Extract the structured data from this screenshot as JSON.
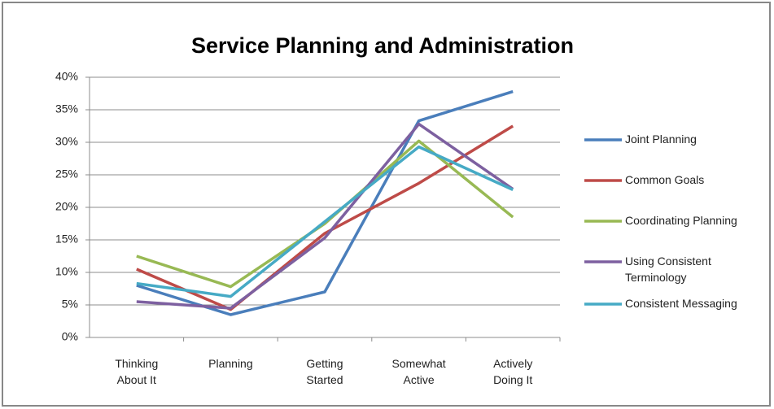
{
  "chart_data": {
    "type": "line",
    "title": "Service Planning and Administration",
    "categories": [
      "Thinking About It",
      "Planning",
      "Getting Started",
      "Somewhat Active",
      "Actively Doing It"
    ],
    "series": [
      {
        "name": "Joint Planning",
        "color": "#4a7ebb",
        "values": [
          8,
          3.5,
          7,
          33.3,
          37.8
        ]
      },
      {
        "name": "Common Goals",
        "color": "#be4b48",
        "values": [
          10.5,
          4.3,
          16,
          23.7,
          32.5
        ]
      },
      {
        "name": "Coordinating Planning",
        "color": "#98b954",
        "values": [
          12.5,
          7.8,
          17.5,
          30.2,
          18.5
        ]
      },
      {
        "name": "Using Consistent Terminology",
        "color": "#7d60a0",
        "values": [
          5.5,
          4.5,
          15.3,
          32.8,
          22.8
        ]
      },
      {
        "name": "Consistent Messaging",
        "color": "#46aac5",
        "values": [
          8.3,
          6.3,
          17.8,
          29.3,
          22.7
        ]
      }
    ],
    "ylim": [
      0,
      40
    ],
    "yticks": [
      {
        "value": 0,
        "label": "0%"
      },
      {
        "value": 5,
        "label": "5%"
      },
      {
        "value": 10,
        "label": "10%"
      },
      {
        "value": 15,
        "label": "15%"
      },
      {
        "value": 20,
        "label": "20%"
      },
      {
        "value": 25,
        "label": "25%"
      },
      {
        "value": 30,
        "label": "30%"
      },
      {
        "value": 35,
        "label": "35%"
      },
      {
        "value": 40,
        "label": "40%"
      }
    ],
    "grid": true,
    "legend": "right"
  }
}
